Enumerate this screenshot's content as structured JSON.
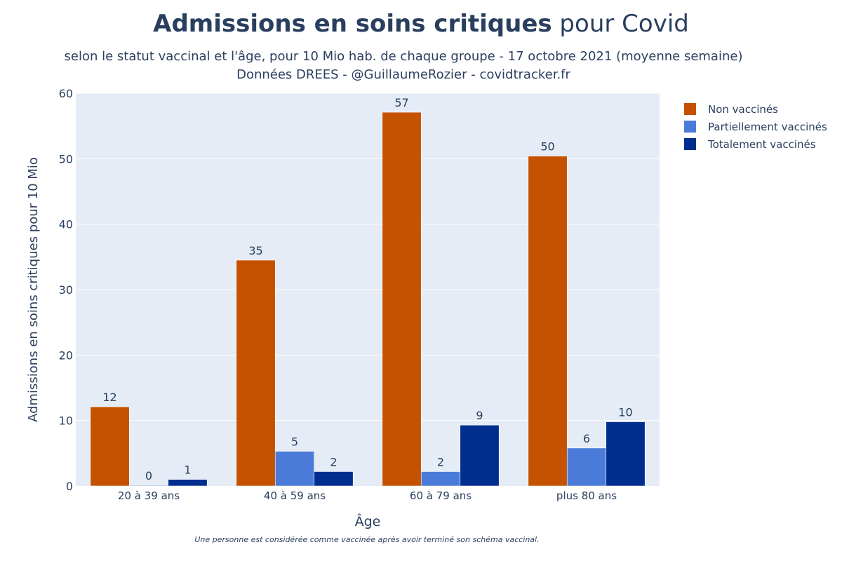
{
  "header": {
    "title_bold": "Admissions en soins critiques",
    "title_rest": " pour Covid",
    "subtitle_line1": "selon le statut vaccinal et l'âge, pour 10 Mio hab. de chaque groupe - 17 octobre 2021 (moyenne semaine)",
    "subtitle_line2": "Données DREES - @GuillaumeRozier - covidtracker.fr"
  },
  "footnote": "Une personne est considérée comme vaccinée après avoir terminé son schéma vaccinal.",
  "colors": {
    "plot_bg": "#e5ecf6",
    "grid": "#ffffff",
    "text": "#2a3f5f"
  },
  "chart_data": {
    "type": "bar",
    "title": "Admissions en soins critiques pour Covid",
    "xlabel": "Âge",
    "ylabel": "Admissions en soins critiques pour 10 Mio",
    "ylim": [
      0,
      60
    ],
    "yticks": [
      0,
      10,
      20,
      30,
      40,
      50,
      60
    ],
    "categories": [
      "20 à 39 ans",
      "40 à 59 ans",
      "60 à 79 ans",
      "plus 80 ans"
    ],
    "series": [
      {
        "name": "Non vaccinés",
        "color": "#c55200",
        "values": [
          12.1,
          34.5,
          57.1,
          50.4
        ],
        "labels": [
          "12",
          "35",
          "57",
          "50"
        ]
      },
      {
        "name": "Partiellement vaccinés",
        "color": "#4a7bd8",
        "values": [
          0.1,
          5.3,
          2.2,
          5.8
        ],
        "labels": [
          "0",
          "5",
          "2",
          "6"
        ]
      },
      {
        "name": "Totalement vaccinés",
        "color": "#002e8e",
        "values": [
          1.0,
          2.2,
          9.3,
          9.8
        ],
        "labels": [
          "1",
          "2",
          "9",
          "10"
        ]
      }
    ],
    "legend_position": "top-right",
    "grid": true
  }
}
